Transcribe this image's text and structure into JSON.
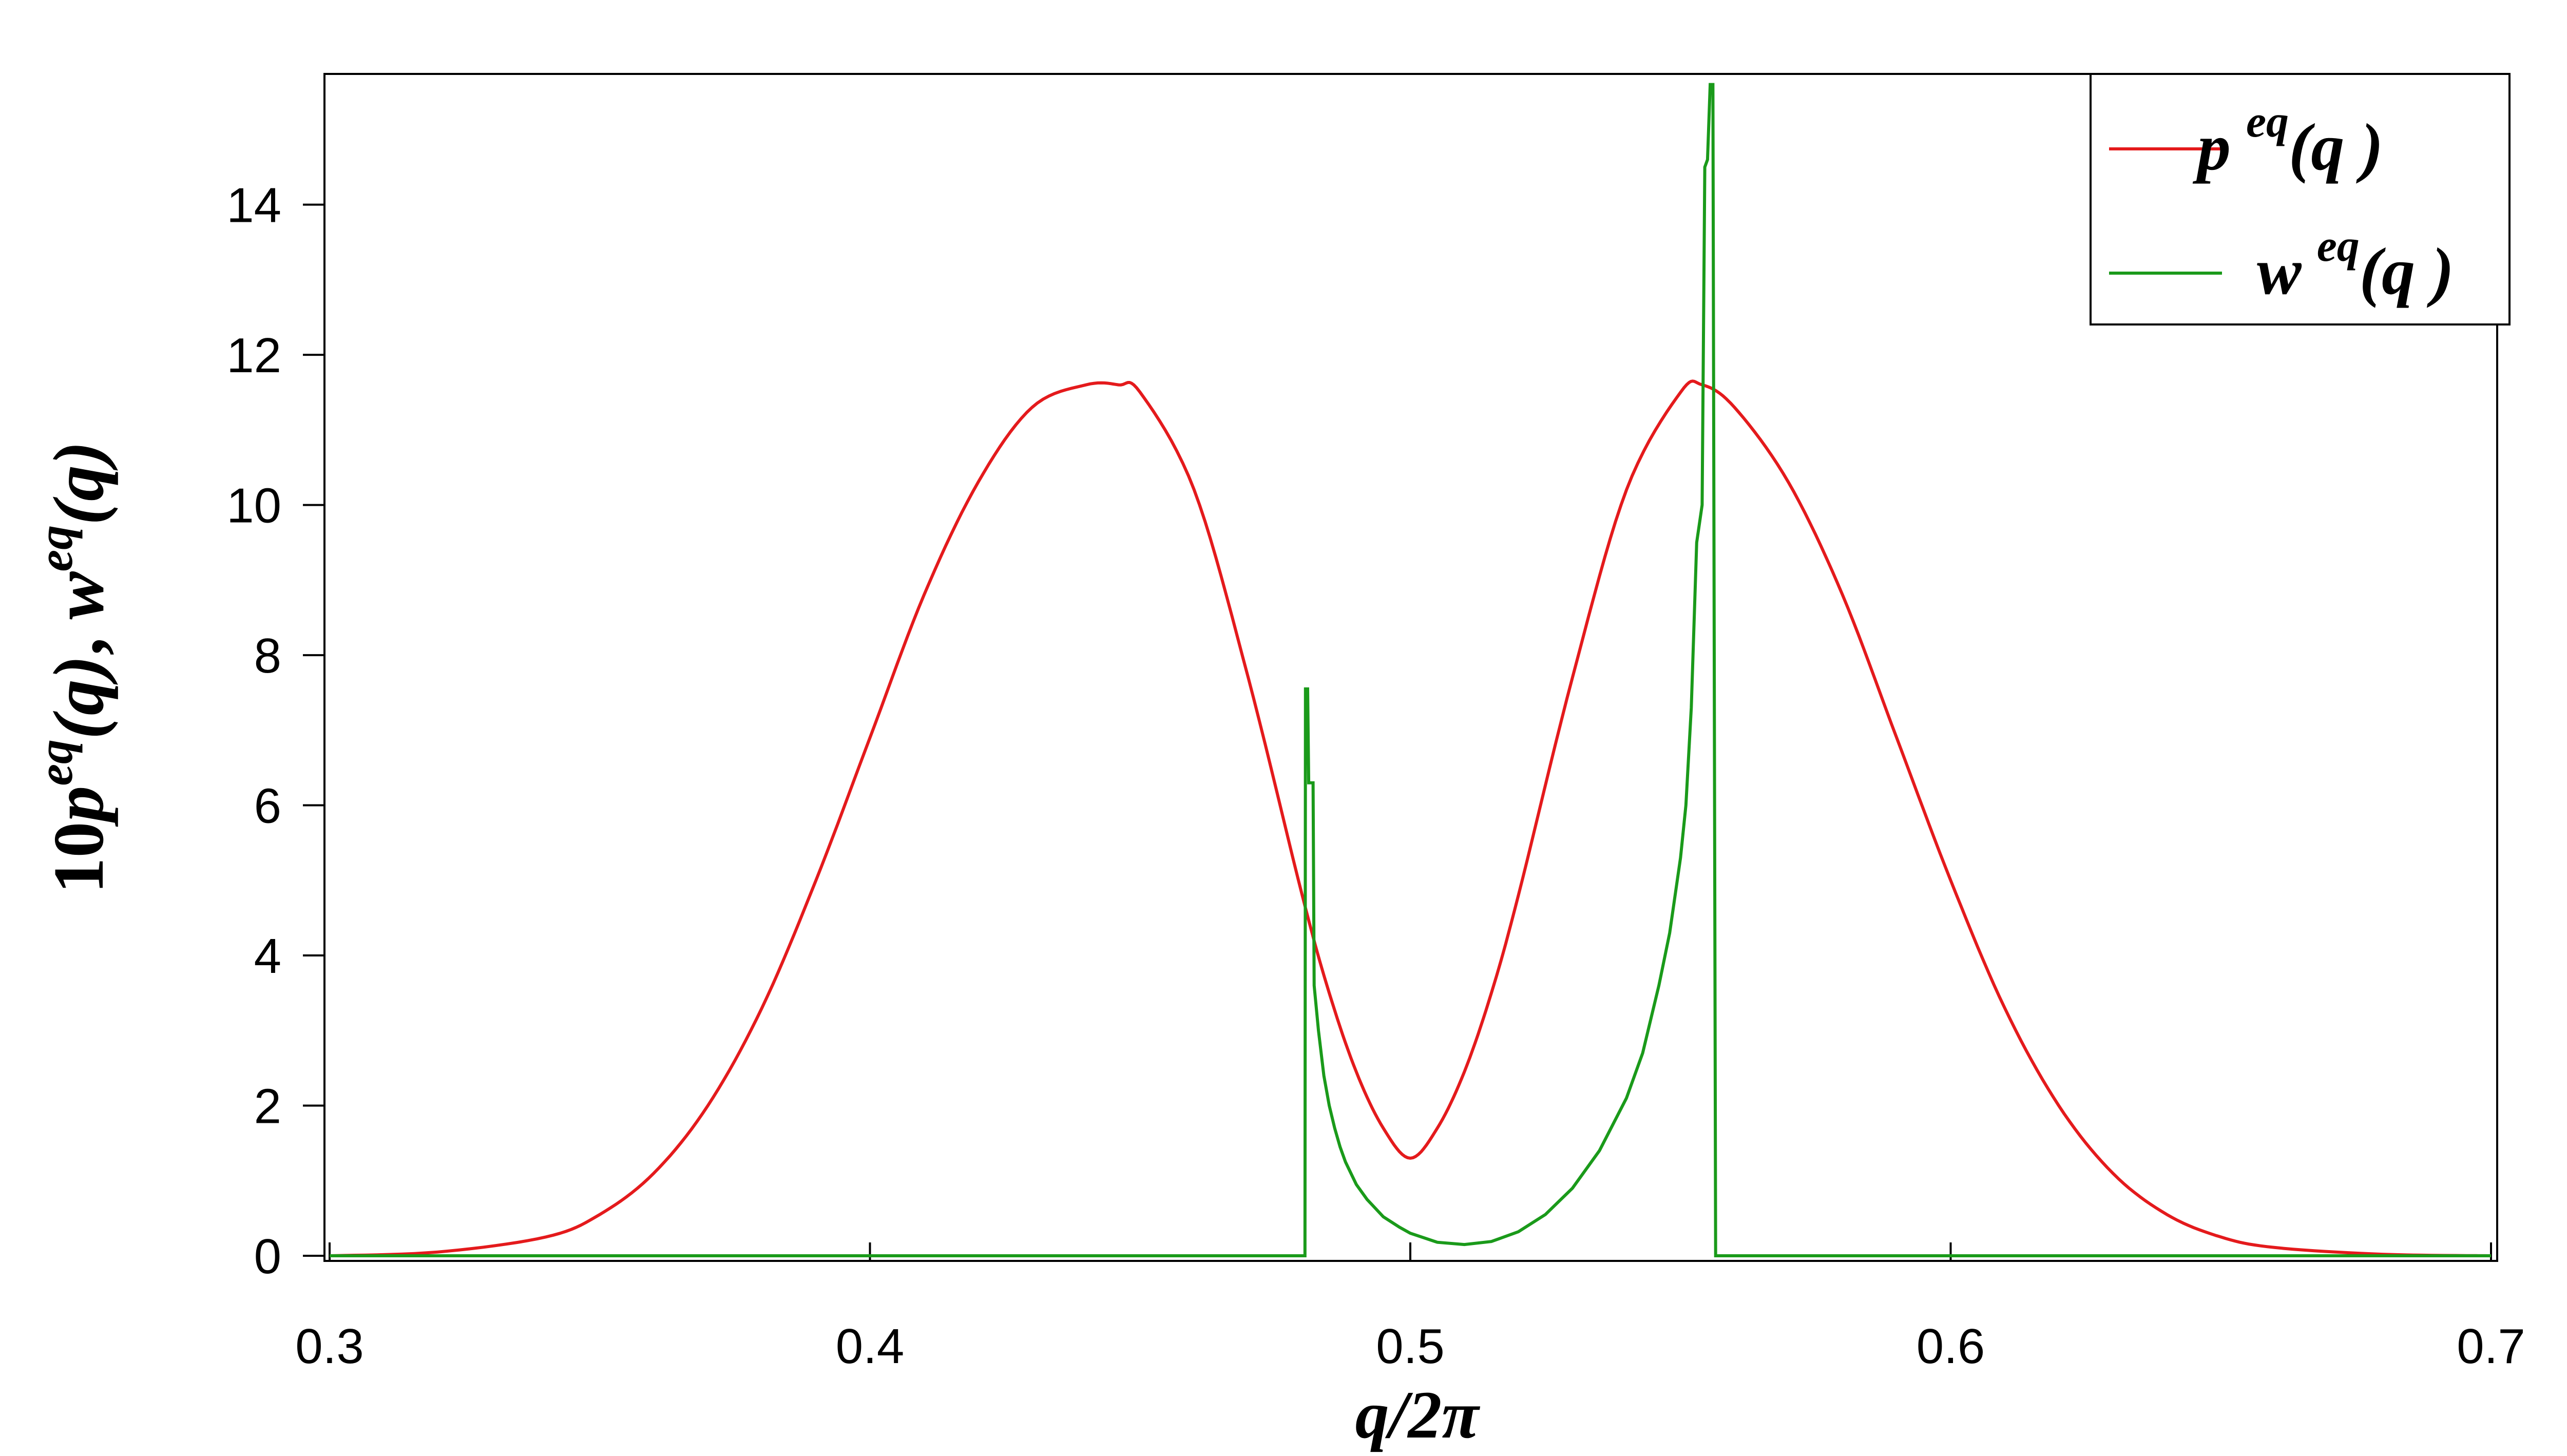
{
  "chart_data": {
    "type": "line",
    "title": "",
    "xlabel": {
      "main": "q/2π"
    },
    "ylabel": {
      "prefix": "10",
      "p": "p",
      "eq": "eq",
      "paren": "(q)",
      "sep": ", ",
      "w": "w"
    },
    "xlim": [
      0.3,
      0.7
    ],
    "ylim": [
      0,
      15.7
    ],
    "xticks": [
      "0.3",
      "0.4",
      "0.5",
      "0.6",
      "0.7"
    ],
    "xtick_values": [
      0.3,
      0.4,
      0.5,
      0.6,
      0.7
    ],
    "yticks": [
      "0",
      "2",
      "4",
      "6",
      "8",
      "10",
      "12",
      "14"
    ],
    "ytick_values": [
      0,
      2,
      4,
      6,
      8,
      10,
      12,
      14
    ],
    "grid": false,
    "legend_position": "top-right",
    "series": [
      {
        "name": "p eq(q)",
        "legend": {
          "base": "p",
          "sup": "eq",
          "arg": "(q )"
        },
        "color": "#e41a1c",
        "step": false,
        "x": [
          0.3,
          0.32,
          0.34,
          0.35,
          0.36,
          0.37,
          0.38,
          0.39,
          0.4,
          0.41,
          0.42,
          0.43,
          0.44,
          0.446,
          0.45,
          0.46,
          0.47,
          0.48,
          0.485,
          0.49,
          0.495,
          0.5,
          0.505,
          0.51,
          0.515,
          0.52,
          0.53,
          0.54,
          0.55,
          0.554,
          0.56,
          0.57,
          0.58,
          0.59,
          0.6,
          0.61,
          0.62,
          0.63,
          0.64,
          0.65,
          0.66,
          0.68,
          0.7
        ],
        "y": [
          0.0,
          0.05,
          0.25,
          0.55,
          1.1,
          2.0,
          3.3,
          5.0,
          6.9,
          8.8,
          10.3,
          11.3,
          11.6,
          11.6,
          11.5,
          10.2,
          7.7,
          4.8,
          3.5,
          2.45,
          1.7,
          1.3,
          1.7,
          2.45,
          3.5,
          4.8,
          7.7,
          10.2,
          11.5,
          11.6,
          11.3,
          10.3,
          8.8,
          6.9,
          5.0,
          3.3,
          2.0,
          1.1,
          0.55,
          0.25,
          0.11,
          0.02,
          0.0
        ]
      },
      {
        "name": "w eq(q)",
        "legend": {
          "base": "w",
          "sup": "eq",
          "arg": "(q )"
        },
        "color": "#1a9a1a",
        "step": true,
        "x": [
          0.3,
          0.4805,
          0.4806,
          0.481,
          0.4812,
          0.482,
          0.4822,
          0.483,
          0.484,
          0.485,
          0.486,
          0.487,
          0.488,
          0.49,
          0.492,
          0.495,
          0.498,
          0.5,
          0.505,
          0.51,
          0.515,
          0.52,
          0.525,
          0.53,
          0.535,
          0.54,
          0.543,
          0.546,
          0.548,
          0.55,
          0.551,
          0.552,
          0.553,
          0.554,
          0.5545,
          0.555,
          0.5555,
          0.556,
          0.5565,
          0.6,
          0.7
        ],
        "y": [
          0.0,
          0.0,
          7.55,
          7.55,
          6.3,
          6.3,
          3.6,
          3.0,
          2.4,
          2.0,
          1.7,
          1.45,
          1.25,
          0.95,
          0.75,
          0.52,
          0.38,
          0.3,
          0.18,
          0.15,
          0.19,
          0.32,
          0.55,
          0.9,
          1.4,
          2.1,
          2.7,
          3.6,
          4.3,
          5.3,
          6.0,
          7.3,
          9.5,
          10.0,
          14.5,
          14.6,
          15.6,
          15.6,
          0.0,
          0.0,
          0.0
        ]
      }
    ]
  }
}
